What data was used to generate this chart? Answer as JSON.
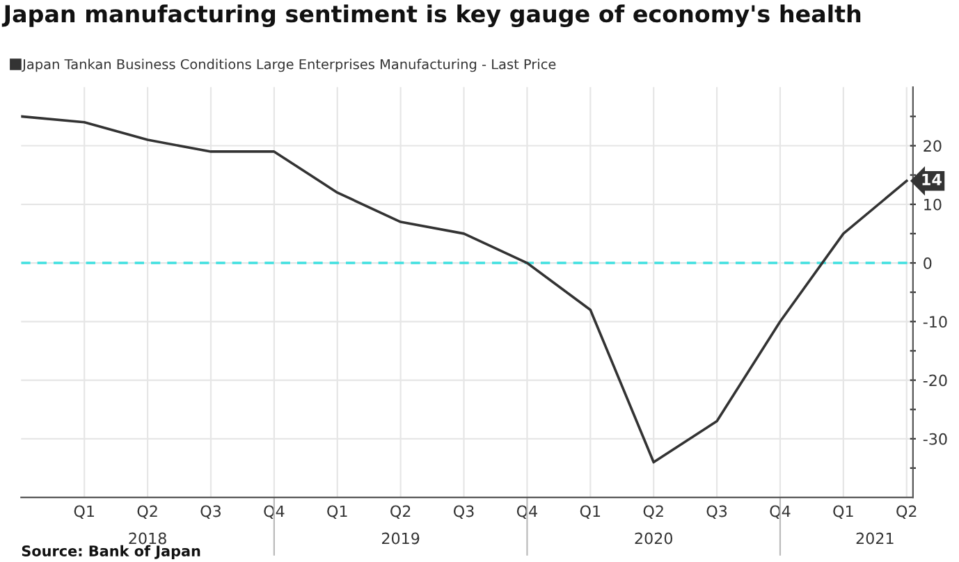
{
  "chart_data": {
    "type": "line",
    "title": "Japan manufacturing sentiment is key gauge of economy's health",
    "categories": [
      null,
      "Q1",
      "Q2",
      "Q3",
      "Q4",
      "Q1",
      "Q2",
      "Q3",
      "Q4",
      "Q1",
      "Q2",
      "Q3",
      "Q4",
      "Q1",
      "Q2"
    ],
    "series": [
      {
        "name": "Japan Tankan Business Conditions Large Enterprises Manufacturing - Last Price",
        "color": "#333333",
        "values": [
          25,
          24,
          21,
          19,
          19,
          12,
          7,
          5,
          0,
          -8,
          -34,
          -27,
          -10,
          5,
          14
        ],
        "value_labels": [
          null,
          null,
          null,
          null,
          null,
          null,
          null,
          null,
          null,
          null,
          null,
          null,
          null,
          null,
          "14"
        ]
      }
    ],
    "ylim": [
      -40,
      30
    ],
    "yticks": [
      {
        "value": -35,
        "label": null
      },
      -30,
      {
        "value": -25,
        "label": null
      },
      -20,
      {
        "value": -15,
        "label": null
      },
      -10,
      {
        "value": -5,
        "label": null
      },
      0,
      {
        "value": 5,
        "label": null
      },
      10,
      {
        "value": 15,
        "label": null
      },
      20,
      {
        "value": 25,
        "label": null
      }
    ],
    "ref_lines": [
      {
        "axis": "y",
        "value": 0,
        "color": "#40e0e0",
        "line_style": "dashed"
      }
    ],
    "grid": true,
    "legend": "top left",
    "line_style": "solid",
    "marker": "none",
    "annotations": [
      "2018",
      "2019",
      "2020",
      "2021",
      "Source: Bank of Japan"
    ]
  }
}
